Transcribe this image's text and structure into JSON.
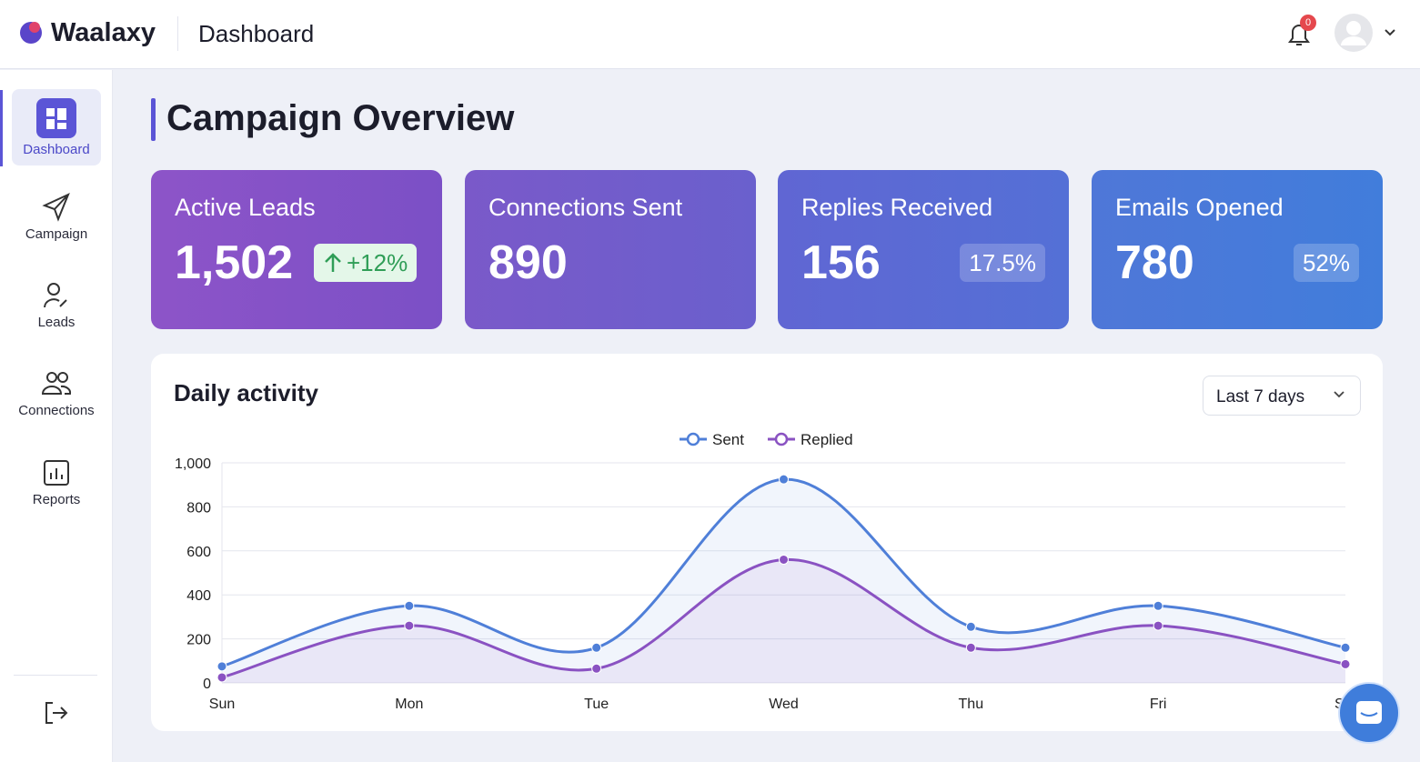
{
  "header": {
    "brand": "Waalaxy",
    "page": "Dashboard",
    "notification_count": "0"
  },
  "sidebar": {
    "items": [
      "Dashboard",
      "Campaign",
      "Leads",
      "Connections",
      "Reports"
    ]
  },
  "main": {
    "title": "Campaign Overview",
    "cards": [
      {
        "label": "Active Leads",
        "value": "1,502",
        "badge": "+12%"
      },
      {
        "label": "Connections Sent",
        "value": "890"
      },
      {
        "label": "Replies Received",
        "value": "156",
        "badge": "17.5%"
      },
      {
        "label": "Emails Opened",
        "value": "780",
        "badge": "52%"
      }
    ],
    "panel_title": "Daily activity",
    "range_select": "Last 7 days"
  },
  "chart_data": {
    "type": "line",
    "categories": [
      "Sun",
      "Mon",
      "Tue",
      "Wed",
      "Thu",
      "Fri",
      "Sat"
    ],
    "series": [
      {
        "name": "Sent",
        "color": "#4f7fd8",
        "values": [
          75,
          350,
          160,
          925,
          255,
          350,
          160
        ]
      },
      {
        "name": "Replied",
        "color": "#8a52c2",
        "values": [
          25,
          260,
          65,
          560,
          160,
          260,
          85
        ]
      }
    ],
    "ylim": [
      0,
      1000
    ],
    "yticks": [
      0,
      200,
      400,
      600,
      800,
      {
        "value": 1000,
        "label": "1,000"
      }
    ],
    "grid": true,
    "legend": "top"
  }
}
